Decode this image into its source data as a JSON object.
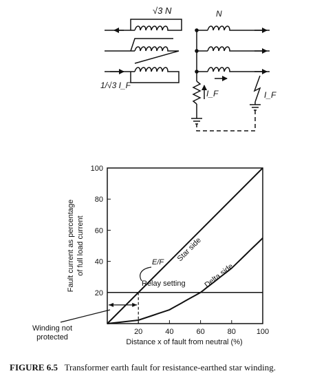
{
  "circuit": {
    "delta_winding_label": "√3 N",
    "star_winding_label": "N",
    "delta_current_label": "1/√3 I_F",
    "resistor_current_label": "I_F",
    "fault_current_label": "I_F"
  },
  "chart": {
    "ylabel_line1": "Fault current as percentage",
    "ylabel_line2": "of full load current",
    "xlabel": "Distance x of fault from neutral (%)",
    "star_side_label": "Star side",
    "delta_side_label": "Delta side",
    "ef_label": "E/F",
    "relay_label": "Relay setting",
    "unprotected_label_line1": "Winding not",
    "unprotected_label_line2": "protected"
  },
  "chart_data": {
    "type": "line",
    "xlabel": "Distance x of fault from neutral (%)",
    "ylabel": "Fault current as percentage of full load current",
    "xlim": [
      0,
      100
    ],
    "ylim": [
      0,
      100
    ],
    "x_ticks": [
      20,
      40,
      60,
      80,
      100
    ],
    "y_ticks": [
      20,
      40,
      60,
      80,
      100
    ],
    "series": [
      {
        "name": "Star side",
        "x": [
          0,
          100
        ],
        "y": [
          0,
          100
        ]
      },
      {
        "name": "Delta side",
        "x": [
          0,
          20,
          40,
          60,
          80,
          100
        ],
        "y": [
          0,
          2.2,
          8.9,
          20,
          35.6,
          55
        ]
      }
    ],
    "relay_setting": 20,
    "unprotected_limit_x": 20,
    "grid": false
  },
  "caption": {
    "label": "FIGURE 6.5",
    "text": "Transformer earth fault for resistance-earthed star winding."
  }
}
